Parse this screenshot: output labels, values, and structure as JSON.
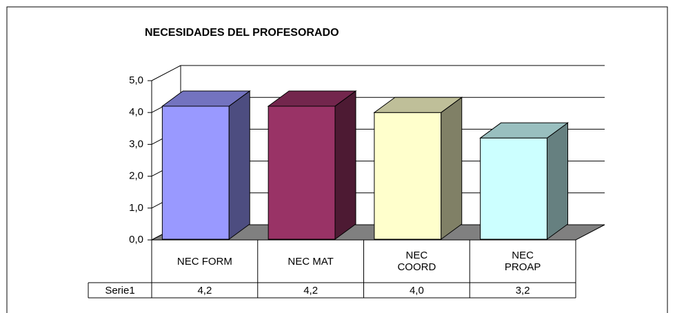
{
  "chart_data": {
    "type": "bar3d",
    "title": "NECESIDADES DEL PROFESORADO",
    "categories": [
      "NEC FORM",
      "NEC MAT",
      "NEC COORD",
      "NEC PROAP"
    ],
    "series": [
      {
        "name": "Serie1",
        "colors": [
          "#9999ff",
          "#993366",
          "#ffffcc",
          "#ccffff"
        ],
        "values": [
          4.2,
          4.2,
          4.0,
          3.2
        ],
        "value_labels": [
          "4,2",
          "4,2",
          "4,0",
          "3,2"
        ]
      }
    ],
    "ylim": [
      0,
      5
    ],
    "yticks": [
      {
        "value": 0,
        "label": "0,0"
      },
      {
        "value": 1,
        "label": "1,0"
      },
      {
        "value": 2,
        "label": "2,0"
      },
      {
        "value": 3,
        "label": "3,0"
      },
      {
        "value": 4,
        "label": "4,0"
      },
      {
        "value": 5,
        "label": "5,0"
      }
    ],
    "grid": true,
    "data_table": true
  }
}
